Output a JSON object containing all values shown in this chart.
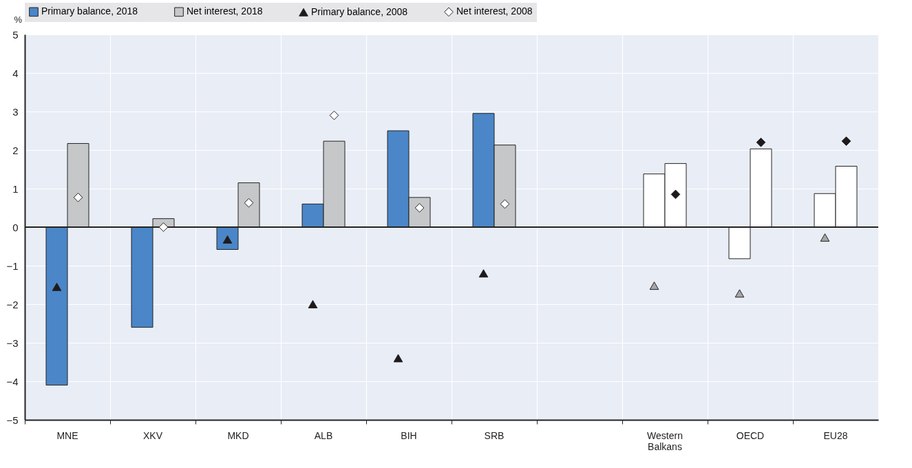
{
  "chart_data": {
    "type": "bar",
    "ylabel": "%",
    "categories": [
      "MNE",
      "XKV",
      "MKD",
      "ALB",
      "BIH",
      "SRB",
      null,
      "Western Balkans",
      "OECD",
      "EU28"
    ],
    "series": [
      {
        "name": "Primary balance, 2018",
        "color": "#4a86c8",
        "colors": [
          "#4a86c8",
          "#4a86c8",
          "#4a86c8",
          "#4a86c8",
          "#4a86c8",
          "#4a86c8",
          "#4a86c8",
          "#ffffff",
          "#ffffff",
          "#ffffff"
        ],
        "values": [
          -4.1,
          -2.6,
          -0.58,
          0.6,
          2.5,
          2.95,
          null,
          1.38,
          -0.82,
          0.87
        ]
      },
      {
        "name": "Net interest, 2018",
        "color": "#c6c7c9",
        "colors": [
          "#c6c7c9",
          "#c6c7c9",
          "#c6c7c9",
          "#c6c7c9",
          "#c6c7c9",
          "#c6c7c9",
          "#c6c7c9",
          "#ffffff",
          "#ffffff",
          "#ffffff"
        ],
        "values": [
          2.17,
          0.22,
          1.15,
          2.23,
          0.77,
          2.13,
          null,
          1.65,
          2.03,
          1.58
        ]
      },
      {
        "name": "Primary balance, 2008",
        "type": "scatter",
        "marker": "triangle",
        "color": "#1f1a1c",
        "colors": [
          "#1f1a1c",
          "#1f1a1c",
          "#1f1a1c",
          "#1f1a1c",
          "#1f1a1c",
          "#1f1a1c",
          "#1f1a1c",
          "#a6a6a8",
          "#a6a6a8",
          "#a6a6a8"
        ],
        "values": [
          -1.55,
          null,
          -0.32,
          -2.0,
          -3.4,
          -1.2,
          null,
          -1.52,
          -1.72,
          -0.27
        ]
      },
      {
        "name": "Net interest, 2008",
        "type": "scatter",
        "marker": "diamond",
        "color": "#ffffff",
        "colors": [
          "#ffffff",
          "#ffffff",
          "#ffffff",
          "#ffffff",
          "#ffffff",
          "#ffffff",
          "#ffffff",
          "#1f1a1c",
          "#1f1a1c",
          "#1f1a1c"
        ],
        "values": [
          0.77,
          0.0,
          0.63,
          2.9,
          0.5,
          0.6,
          null,
          0.85,
          2.2,
          2.23
        ]
      }
    ],
    "ylim": [
      -5,
      5
    ],
    "yticks": [
      -5,
      -4,
      -3,
      -2,
      -1,
      0,
      1,
      2,
      3,
      4,
      5
    ],
    "grid": true,
    "legend": "top"
  }
}
